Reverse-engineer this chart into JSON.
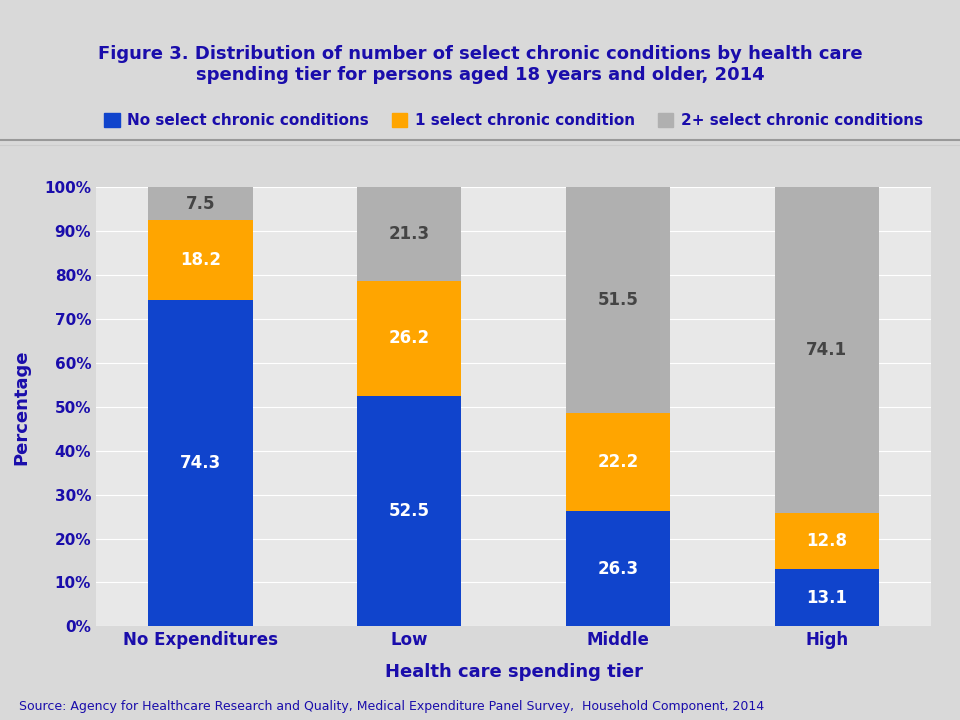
{
  "categories": [
    "No Expenditures",
    "Low",
    "Middle",
    "High"
  ],
  "series": {
    "No select chronic conditions": [
      74.3,
      52.5,
      26.3,
      13.1
    ],
    "1 select chronic condition": [
      18.2,
      26.2,
      22.2,
      12.8
    ],
    "2+ select chronic conditions": [
      7.5,
      21.3,
      51.5,
      74.1
    ]
  },
  "colors": {
    "No select chronic conditions": "#1044cc",
    "1 select chronic condition": "#ffa500",
    "2+ select chronic conditions": "#b0b0b0"
  },
  "title_line1": "Figure 3. Distribution of number of select chronic conditions by health care",
  "title_line2": "spending tier for persons aged 18 years and older, 2014",
  "xlabel": "Health care spending tier",
  "ylabel": "Percentage",
  "source": "Source: Agency for Healthcare Research and Quality, Medical Expenditure Panel Survey,  Household Component, 2014",
  "yticks": [
    0,
    10,
    20,
    30,
    40,
    50,
    60,
    70,
    80,
    90,
    100
  ],
  "ytick_labels": [
    "0%",
    "10%",
    "20%",
    "30%",
    "40%",
    "50%",
    "60%",
    "70%",
    "80%",
    "90%",
    "100%"
  ],
  "background_color": "#d9d9d9",
  "plot_background": "#e8e8e8",
  "title_color": "#1a0dab",
  "axis_color": "#1a0dab",
  "bar_width": 0.5
}
